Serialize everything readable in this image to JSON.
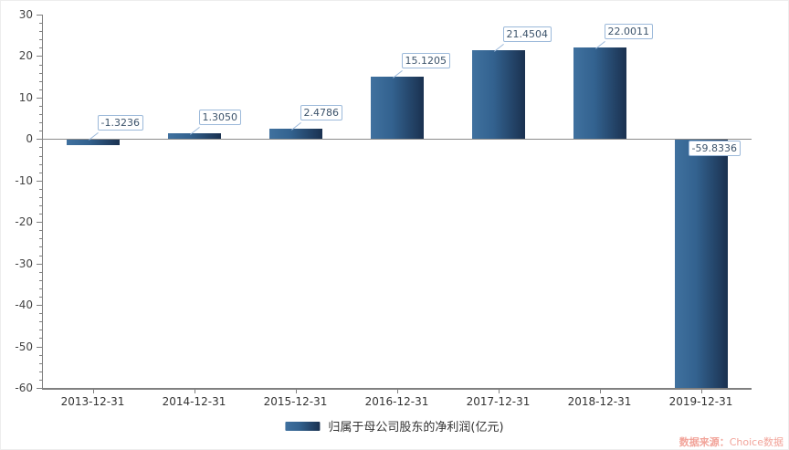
{
  "chart_data": {
    "type": "bar",
    "title": "",
    "categories": [
      "2013-12-31",
      "2014-12-31",
      "2015-12-31",
      "2016-12-31",
      "2017-12-31",
      "2018-12-31",
      "2019-12-31"
    ],
    "series": [
      {
        "name": "归属于母公司股东的净利润(亿元)",
        "values": [
          -1.3236,
          1.305,
          2.4786,
          15.1205,
          21.4504,
          22.0011,
          -59.8336
        ],
        "value_labels": [
          "-1.3236",
          "1.3050",
          "2.4786",
          "15.1205",
          "21.4504",
          "22.0011",
          "-59.8336"
        ]
      }
    ],
    "ylim": [
      -60,
      30
    ],
    "y_tick_labels": [
      "30",
      "20",
      "10",
      "0",
      "-10",
      "-20",
      "-30",
      "-40",
      "-50",
      "-60"
    ],
    "y_major_step": 10,
    "y_minor_step": 2,
    "grid": false,
    "legend_position": "bottom-center",
    "xlabel": "",
    "ylabel": ""
  },
  "watermark": {
    "prefix": "数据来源：",
    "brand": "Choice数据"
  },
  "colors": {
    "bar_gradient_left": "#40719f",
    "bar_gradient_mid": "#33628f",
    "bar_gradient_right": "#1a3150",
    "axis": "#808080",
    "y_tick_label": "#444444",
    "x_tick_label": "#333333",
    "value_label_text": "#3c536b",
    "value_label_border": "#9cb9da",
    "legend_text": "#333333",
    "watermark": "#f2a49a"
  }
}
